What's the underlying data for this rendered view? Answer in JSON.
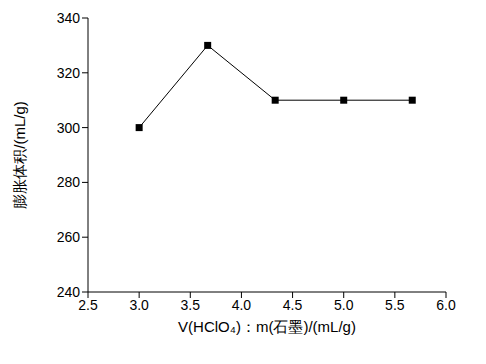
{
  "chart_data": {
    "type": "line",
    "xlabel": "V(HClO₄)：m(石墨)/(mL/g)",
    "ylabel": "膨胀体积/(mL/g)",
    "series": [
      {
        "name": "膨胀体积",
        "color": "#000000",
        "marker": "square",
        "line_style": "solid",
        "x": [
          3.0,
          3.67,
          4.33,
          5.0,
          5.67
        ],
        "values": [
          300,
          330,
          310,
          310,
          310
        ]
      }
    ],
    "xlim": [
      2.5,
      6.0
    ],
    "xticks": [
      2.5,
      {
        "value": 3,
        "label": "3.0"
      },
      3.5,
      {
        "value": 4,
        "label": "4.0"
      },
      4.5,
      {
        "value": 5,
        "label": "5.0"
      },
      5.5,
      {
        "value": 6,
        "label": "6.0"
      }
    ],
    "ylim": [
      240,
      340
    ],
    "yticks": [
      240,
      260,
      280,
      300,
      320,
      340
    ],
    "grid": false
  }
}
